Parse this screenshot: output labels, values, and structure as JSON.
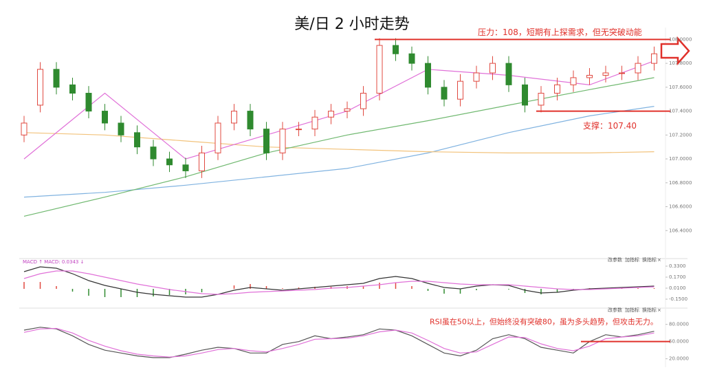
{
  "chart_data": [
    {
      "type": "candlestick",
      "title": "美/日 2 小时走势",
      "colors": {
        "up": "#e0483f",
        "down": "#2f8a2f"
      },
      "ylim": [
        106.2,
        108.1
      ],
      "yticks": [
        {
          "value": 108,
          "label": "108.0000"
        },
        {
          "value": 107.8,
          "label": "107.8000"
        },
        {
          "value": 107.6,
          "label": "107.6000"
        },
        {
          "value": 107.4,
          "label": "107.4000"
        },
        {
          "value": 107.2,
          "label": "107.2000"
        },
        {
          "value": 107,
          "label": "107.0000"
        },
        {
          "value": 106.8,
          "label": "106.8000"
        },
        {
          "value": 106.6,
          "label": "106.6000"
        },
        {
          "value": 106.4,
          "label": "106.4000"
        }
      ],
      "grid": false,
      "open": [
        107.2,
        107.45,
        107.75,
        107.62,
        107.55,
        107.4,
        107.3,
        107.22,
        107.1,
        107.0,
        106.95,
        106.9,
        107.05,
        107.3,
        107.4,
        107.25,
        107.05,
        107.25,
        107.25,
        107.35,
        107.4,
        107.42,
        107.55,
        107.95,
        107.88,
        107.8,
        107.6,
        107.5,
        107.65,
        107.72,
        107.8,
        107.62,
        107.45,
        107.55,
        107.62,
        107.68,
        107.7,
        107.72,
        107.72,
        107.8
      ],
      "high": [
        107.36,
        107.81,
        107.81,
        107.68,
        107.61,
        107.46,
        107.36,
        107.28,
        107.16,
        107.06,
        107.01,
        107.11,
        107.36,
        107.46,
        107.46,
        107.31,
        107.31,
        107.31,
        107.41,
        107.46,
        107.48,
        107.61,
        108.01,
        108.01,
        107.94,
        107.86,
        107.66,
        107.71,
        107.78,
        107.86,
        107.86,
        107.68,
        107.61,
        107.68,
        107.74,
        107.76,
        107.78,
        107.78,
        107.86,
        107.94
      ],
      "low": [
        107.14,
        107.39,
        107.54,
        107.49,
        107.34,
        107.24,
        107.14,
        107.04,
        106.94,
        106.89,
        106.84,
        106.84,
        106.99,
        107.24,
        107.19,
        106.99,
        106.99,
        107.19,
        107.19,
        107.29,
        107.34,
        107.36,
        107.49,
        107.82,
        107.74,
        107.54,
        107.44,
        107.44,
        107.59,
        107.66,
        107.56,
        107.39,
        107.39,
        107.49,
        107.56,
        107.62,
        107.64,
        107.66,
        107.66,
        107.74
      ],
      "close": [
        107.3,
        107.75,
        107.6,
        107.55,
        107.4,
        107.3,
        107.2,
        107.1,
        107.0,
        106.95,
        106.9,
        107.05,
        107.3,
        107.4,
        107.25,
        107.05,
        107.25,
        107.25,
        107.35,
        107.4,
        107.42,
        107.55,
        107.95,
        107.88,
        107.8,
        107.6,
        107.5,
        107.65,
        107.72,
        107.8,
        107.62,
        107.45,
        107.55,
        107.62,
        107.68,
        107.7,
        107.72,
        107.72,
        107.8,
        107.88
      ],
      "series": [
        {
          "color": "#7fb2e0",
          "x": [
            0,
            5,
            10,
            15,
            20,
            25,
            30,
            35,
            39
          ],
          "values": [
            106.68,
            106.72,
            106.78,
            106.85,
            106.92,
            107.05,
            107.22,
            107.36,
            107.44
          ]
        },
        {
          "color": "#f2c27a",
          "x": [
            0,
            5,
            10,
            15,
            20,
            25,
            30,
            35,
            39
          ],
          "values": [
            107.22,
            107.2,
            107.15,
            107.1,
            107.08,
            107.06,
            107.05,
            107.05,
            107.06
          ]
        },
        {
          "color": "#6fb86f",
          "x": [
            0,
            5,
            10,
            15,
            20,
            25,
            30,
            35,
            39
          ],
          "values": [
            106.52,
            106.68,
            106.85,
            107.05,
            107.2,
            107.32,
            107.45,
            107.58,
            107.68
          ]
        },
        {
          "color": "#e070d8",
          "x": [
            0,
            5,
            10,
            15,
            20,
            25,
            30,
            35,
            39
          ],
          "values": [
            107.0,
            107.55,
            107.0,
            107.2,
            107.4,
            107.75,
            107.7,
            107.62,
            107.82
          ]
        }
      ],
      "annotations": [
        {
          "value": 108,
          "label": "压力：108，短期有上探需求，但无突破动能",
          "color": "#e0302a"
        },
        {
          "value": 107.4,
          "label": "支撑：107.40",
          "color": "#e0302a"
        }
      ]
    },
    {
      "type": "macd",
      "header": "MACD ↑ MACD: 0.0343 ↓",
      "toolbar": [
        "改参数",
        "加指标",
        "换指标",
        "×"
      ],
      "colors": {
        "up": "#e0483f",
        "down": "#2f8a2f"
      },
      "ylim": [
        -0.2,
        0.38
      ],
      "yticks": [
        {
          "value": 0.33,
          "label": "0.3300"
        },
        {
          "value": 0.17,
          "label": "0.1700"
        },
        {
          "value": 0.01,
          "label": "0.0100"
        },
        {
          "value": -0.15,
          "label": "-0.1500"
        }
      ],
      "histogram": [
        0.1,
        0.1,
        0.04,
        -0.04,
        -0.1,
        -0.12,
        -0.12,
        -0.12,
        -0.11,
        -0.09,
        -0.08,
        -0.05,
        0.0,
        0.05,
        0.07,
        0.04,
        0.01,
        0.02,
        0.03,
        0.03,
        0.04,
        0.04,
        0.09,
        0.09,
        0.04,
        -0.03,
        -0.07,
        -0.07,
        -0.02,
        0.0,
        -0.01,
        -0.06,
        -0.08,
        -0.05,
        -0.01,
        0.01,
        0.01,
        0.01,
        0.01,
        0.01
      ],
      "series": [
        {
          "color": "#333333",
          "values": [
            0.25,
            0.32,
            0.3,
            0.22,
            0.12,
            0.05,
            0.0,
            -0.05,
            -0.08,
            -0.1,
            -0.12,
            -0.12,
            -0.08,
            -0.02,
            0.02,
            0.0,
            -0.02,
            0.0,
            0.02,
            0.04,
            0.06,
            0.08,
            0.15,
            0.18,
            0.15,
            0.08,
            0.02,
            0.0,
            0.04,
            0.06,
            0.05,
            -0.02,
            -0.06,
            -0.05,
            -0.02,
            0.0,
            0.01,
            0.02,
            0.03,
            0.04
          ]
        },
        {
          "color": "#e070d8",
          "values": [
            0.15,
            0.22,
            0.26,
            0.26,
            0.22,
            0.17,
            0.12,
            0.07,
            0.03,
            -0.01,
            -0.04,
            -0.07,
            -0.08,
            -0.07,
            -0.05,
            -0.04,
            -0.03,
            -0.02,
            -0.01,
            0.01,
            0.02,
            0.04,
            0.06,
            0.09,
            0.11,
            0.11,
            0.09,
            0.07,
            0.06,
            0.06,
            0.06,
            0.04,
            0.02,
            0.0,
            -0.01,
            -0.01,
            0.0,
            0.01,
            0.02,
            0.03
          ]
        }
      ]
    },
    {
      "type": "line",
      "toolbar": [
        "改参数",
        "加指标",
        "换指标",
        "×"
      ],
      "ylim": [
        10,
        100
      ],
      "yticks": [
        {
          "value": 80,
          "label": "80.0000"
        },
        {
          "value": 50,
          "label": "50.0000"
        },
        {
          "value": 20,
          "label": "20.0000"
        }
      ],
      "series": [
        {
          "color": "#555555",
          "values": [
            70,
            75,
            72,
            60,
            45,
            35,
            30,
            25,
            22,
            22,
            28,
            35,
            40,
            38,
            30,
            30,
            45,
            50,
            60,
            55,
            58,
            62,
            72,
            70,
            60,
            45,
            30,
            25,
            35,
            55,
            62,
            55,
            40,
            35,
            30,
            50,
            62,
            58,
            62,
            68
          ]
        },
        {
          "color": "#e070d8",
          "values": [
            66,
            72,
            73,
            65,
            52,
            42,
            34,
            28,
            25,
            23,
            25,
            30,
            36,
            38,
            34,
            32,
            38,
            45,
            54,
            55,
            56,
            60,
            67,
            70,
            65,
            52,
            38,
            30,
            32,
            45,
            58,
            57,
            46,
            38,
            34,
            42,
            55,
            58,
            60,
            65
          ]
        }
      ],
      "annotations": [
        {
          "value": 50,
          "label": "RSI虽在50以上，但始终没有突破80，虽为多头趋势，但攻击无力。",
          "color": "#e0302a"
        }
      ]
    }
  ]
}
